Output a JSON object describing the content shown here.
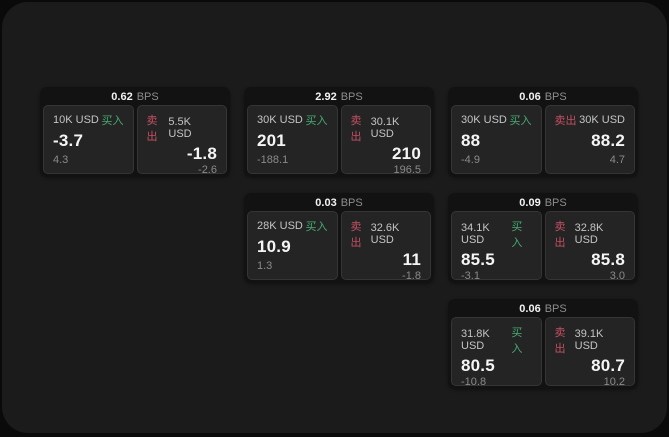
{
  "labels": {
    "bps_unit": "BPS",
    "buy": "买入",
    "sell": "卖出"
  },
  "colors": {
    "backdrop": "#0a0a0a",
    "panel_bg": "#1b1b1b",
    "card_bg": "#121212",
    "subcard_bg": "#242424",
    "subcard_border": "#353535",
    "value_white": "#f5f5f5",
    "amount_gray": "#c4c4c4",
    "sub_gray": "#8a8a8a",
    "bps_gray": "#8d8d8d",
    "buy_green": "#46ab72",
    "sell_red": "#c44f63"
  },
  "cards": [
    {
      "bps": "0.62",
      "buy": {
        "amount": "10K USD",
        "value": "-3.7",
        "sub": "4.3"
      },
      "sell": {
        "amount": "5.5K USD",
        "value": "-1.8",
        "sub": "-2.6"
      }
    },
    {
      "bps": "2.92",
      "buy": {
        "amount": "30K USD",
        "value": "201",
        "sub": "-188.1"
      },
      "sell": {
        "amount": "30.1K USD",
        "value": "210",
        "sub": "196.5"
      }
    },
    {
      "bps": "0.06",
      "buy": {
        "amount": "30K USD",
        "value": "88",
        "sub": "-4.9"
      },
      "sell": {
        "amount": "30K USD",
        "value": "88.2",
        "sub": "4.7"
      }
    },
    {
      "bps": "0.03",
      "buy": {
        "amount": "28K USD",
        "value": "10.9",
        "sub": "1.3"
      },
      "sell": {
        "amount": "32.6K USD",
        "value": "11",
        "sub": "-1.8"
      }
    },
    {
      "bps": "0.09",
      "buy": {
        "amount": "34.1K USD",
        "value": "85.5",
        "sub": "-3.1"
      },
      "sell": {
        "amount": "32.8K USD",
        "value": "85.8",
        "sub": "3.0"
      }
    },
    {
      "bps": "0.06",
      "buy": {
        "amount": "31.8K USD",
        "value": "80.5",
        "sub": "-10.8"
      },
      "sell": {
        "amount": "39.1K USD",
        "value": "80.7",
        "sub": "10.2"
      }
    }
  ]
}
